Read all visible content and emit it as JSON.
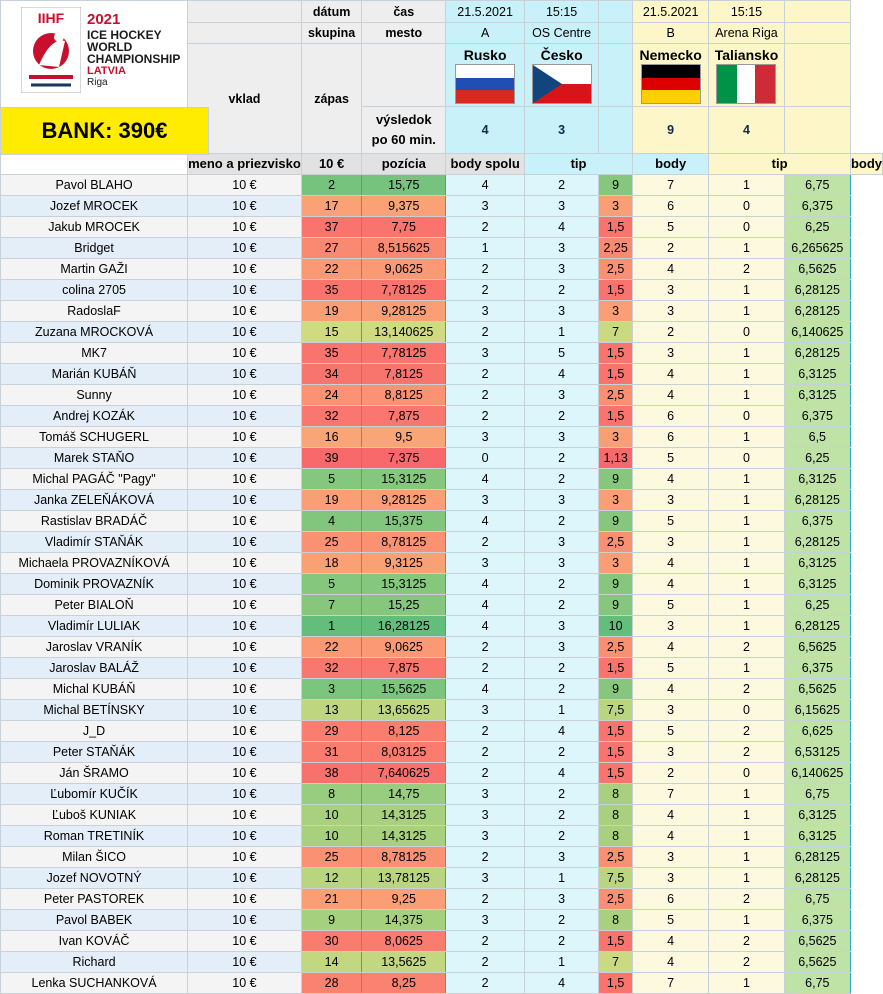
{
  "logo": {
    "brand": "IIHF",
    "year": "2021",
    "line1": "ICE HOCKEY",
    "line2": "WORLD",
    "line3": "CHAMPIONSHIP",
    "country": "LATVIA",
    "city": "Riga"
  },
  "bank": "BANK: 390€",
  "header": {
    "datum": "dátum",
    "cas": "čas",
    "skupina": "skupina",
    "mesto": "mesto",
    "vklad": "vklad",
    "zapas": "zápas",
    "vysledok1": "výsledok",
    "vysledok2": "po 60 min."
  },
  "match1": {
    "date": "21.5.2021",
    "time": "15:15",
    "group": "A",
    "venue": "OS Centre",
    "home": "Rusko",
    "away": "Česko",
    "home_score": "4",
    "away_score": "3"
  },
  "match2": {
    "date": "21.5.2021",
    "time": "15:15",
    "group": "B",
    "venue": "Arena Riga",
    "home": "Nemecko",
    "away": "Taliansko",
    "home_score": "9",
    "away_score": "4"
  },
  "columns": {
    "name": "meno a priezvisko",
    "stake": "10 €",
    "position": "pozícia",
    "total": "body spolu",
    "tip": "tip",
    "points": "body"
  },
  "colors": {
    "green": "#63be7b",
    "yellow": "#fde783",
    "red": "#f8696b",
    "cyan": "#ddf6fb",
    "bank": "#ffec00"
  },
  "rows": [
    {
      "name": "Pavol BLAHO",
      "stake": "10 €",
      "pos": "2",
      "total": "15,75",
      "t1a": "4",
      "t1b": "2",
      "b1": "9",
      "t2a": "7",
      "t2b": "1",
      "b2": "6,75"
    },
    {
      "name": "Jozef MROCEK",
      "stake": "10 €",
      "pos": "17",
      "total": "9,375",
      "t1a": "3",
      "t1b": "3",
      "b1": "3",
      "t2a": "6",
      "t2b": "0",
      "b2": "6,375"
    },
    {
      "name": "Jakub MROCEK",
      "stake": "10 €",
      "pos": "37",
      "total": "7,75",
      "t1a": "2",
      "t1b": "4",
      "b1": "1,5",
      "t2a": "5",
      "t2b": "0",
      "b2": "6,25"
    },
    {
      "name": "Bridget",
      "stake": "10 €",
      "pos": "27",
      "total": "8,515625",
      "t1a": "1",
      "t1b": "3",
      "b1": "2,25",
      "t2a": "2",
      "t2b": "1",
      "b2": "6,265625"
    },
    {
      "name": "Martin GAŽI",
      "stake": "10 €",
      "pos": "22",
      "total": "9,0625",
      "t1a": "2",
      "t1b": "3",
      "b1": "2,5",
      "t2a": "4",
      "t2b": "2",
      "b2": "6,5625"
    },
    {
      "name": "colina 2705",
      "stake": "10 €",
      "pos": "35",
      "total": "7,78125",
      "t1a": "2",
      "t1b": "2",
      "b1": "1,5",
      "t2a": "3",
      "t2b": "1",
      "b2": "6,28125"
    },
    {
      "name": "RadoslaF",
      "stake": "10 €",
      "pos": "19",
      "total": "9,28125",
      "t1a": "3",
      "t1b": "3",
      "b1": "3",
      "t2a": "3",
      "t2b": "1",
      "b2": "6,28125"
    },
    {
      "name": "Zuzana MROCKOVÁ",
      "stake": "10 €",
      "pos": "15",
      "total": "13,140625",
      "t1a": "2",
      "t1b": "1",
      "b1": "7",
      "t2a": "2",
      "t2b": "0",
      "b2": "6,140625"
    },
    {
      "name": "MK7",
      "stake": "10 €",
      "pos": "35",
      "total": "7,78125",
      "t1a": "3",
      "t1b": "5",
      "b1": "1,5",
      "t2a": "3",
      "t2b": "1",
      "b2": "6,28125"
    },
    {
      "name": "Marián KUBÁŇ",
      "stake": "10 €",
      "pos": "34",
      "total": "7,8125",
      "t1a": "2",
      "t1b": "4",
      "b1": "1,5",
      "t2a": "4",
      "t2b": "1",
      "b2": "6,3125"
    },
    {
      "name": "Sunny",
      "stake": "10 €",
      "pos": "24",
      "total": "8,8125",
      "t1a": "2",
      "t1b": "3",
      "b1": "2,5",
      "t2a": "4",
      "t2b": "1",
      "b2": "6,3125"
    },
    {
      "name": "Andrej KOZÁK",
      "stake": "10 €",
      "pos": "32",
      "total": "7,875",
      "t1a": "2",
      "t1b": "2",
      "b1": "1,5",
      "t2a": "6",
      "t2b": "0",
      "b2": "6,375"
    },
    {
      "name": "Tomáš SCHUGERL",
      "stake": "10 €",
      "pos": "16",
      "total": "9,5",
      "t1a": "3",
      "t1b": "3",
      "b1": "3",
      "t2a": "6",
      "t2b": "1",
      "b2": "6,5"
    },
    {
      "name": "Marek STAŇO",
      "stake": "10 €",
      "pos": "39",
      "total": "7,375",
      "t1a": "0",
      "t1b": "2",
      "b1": "1,13",
      "t2a": "5",
      "t2b": "0",
      "b2": "6,25"
    },
    {
      "name": "Michal PAGÁČ \"Pagy\"",
      "stake": "10 €",
      "pos": "5",
      "total": "15,3125",
      "t1a": "4",
      "t1b": "2",
      "b1": "9",
      "t2a": "4",
      "t2b": "1",
      "b2": "6,3125"
    },
    {
      "name": "Janka ZELEŇÁKOVÁ",
      "stake": "10 €",
      "pos": "19",
      "total": "9,28125",
      "t1a": "3",
      "t1b": "3",
      "b1": "3",
      "t2a": "3",
      "t2b": "1",
      "b2": "6,28125"
    },
    {
      "name": "Rastislav BRADÁČ",
      "stake": "10 €",
      "pos": "4",
      "total": "15,375",
      "t1a": "4",
      "t1b": "2",
      "b1": "9",
      "t2a": "5",
      "t2b": "1",
      "b2": "6,375"
    },
    {
      "name": "Vladimír STAŇÁK",
      "stake": "10 €",
      "pos": "25",
      "total": "8,78125",
      "t1a": "2",
      "t1b": "3",
      "b1": "2,5",
      "t2a": "3",
      "t2b": "1",
      "b2": "6,28125"
    },
    {
      "name": "Michaela PROVAZNÍKOVÁ",
      "stake": "10 €",
      "pos": "18",
      "total": "9,3125",
      "t1a": "3",
      "t1b": "3",
      "b1": "3",
      "t2a": "4",
      "t2b": "1",
      "b2": "6,3125"
    },
    {
      "name": "Dominik PROVAZNÍK",
      "stake": "10 €",
      "pos": "5",
      "total": "15,3125",
      "t1a": "4",
      "t1b": "2",
      "b1": "9",
      "t2a": "4",
      "t2b": "1",
      "b2": "6,3125"
    },
    {
      "name": "Peter BIALOŇ",
      "stake": "10 €",
      "pos": "7",
      "total": "15,25",
      "t1a": "4",
      "t1b": "2",
      "b1": "9",
      "t2a": "5",
      "t2b": "1",
      "b2": "6,25"
    },
    {
      "name": "Vladimír LULIAK",
      "stake": "10 €",
      "pos": "1",
      "total": "16,28125",
      "t1a": "4",
      "t1b": "3",
      "b1": "10",
      "t2a": "3",
      "t2b": "1",
      "b2": "6,28125"
    },
    {
      "name": "Jaroslav VRANÍK",
      "stake": "10 €",
      "pos": "22",
      "total": "9,0625",
      "t1a": "2",
      "t1b": "3",
      "b1": "2,5",
      "t2a": "4",
      "t2b": "2",
      "b2": "6,5625"
    },
    {
      "name": "Jaroslav BALÁŽ",
      "stake": "10 €",
      "pos": "32",
      "total": "7,875",
      "t1a": "2",
      "t1b": "2",
      "b1": "1,5",
      "t2a": "5",
      "t2b": "1",
      "b2": "6,375"
    },
    {
      "name": "Michal KUBÁŇ",
      "stake": "10 €",
      "pos": "3",
      "total": "15,5625",
      "t1a": "4",
      "t1b": "2",
      "b1": "9",
      "t2a": "4",
      "t2b": "2",
      "b2": "6,5625"
    },
    {
      "name": "Michal BETÍNSKY",
      "stake": "10 €",
      "pos": "13",
      "total": "13,65625",
      "t1a": "3",
      "t1b": "1",
      "b1": "7,5",
      "t2a": "3",
      "t2b": "0",
      "b2": "6,15625"
    },
    {
      "name": "J_D",
      "stake": "10 €",
      "pos": "29",
      "total": "8,125",
      "t1a": "2",
      "t1b": "4",
      "b1": "1,5",
      "t2a": "5",
      "t2b": "2",
      "b2": "6,625"
    },
    {
      "name": "Peter STAŇÁK",
      "stake": "10 €",
      "pos": "31",
      "total": "8,03125",
      "t1a": "2",
      "t1b": "2",
      "b1": "1,5",
      "t2a": "3",
      "t2b": "2",
      "b2": "6,53125"
    },
    {
      "name": "Ján ŠRAMO",
      "stake": "10 €",
      "pos": "38",
      "total": "7,640625",
      "t1a": "2",
      "t1b": "4",
      "b1": "1,5",
      "t2a": "2",
      "t2b": "0",
      "b2": "6,140625"
    },
    {
      "name": "Ľubomír KUČÍK",
      "stake": "10 €",
      "pos": "8",
      "total": "14,75",
      "t1a": "3",
      "t1b": "2",
      "b1": "8",
      "t2a": "7",
      "t2b": "1",
      "b2": "6,75"
    },
    {
      "name": "Ľuboš KUNIAK",
      "stake": "10 €",
      "pos": "10",
      "total": "14,3125",
      "t1a": "3",
      "t1b": "2",
      "b1": "8",
      "t2a": "4",
      "t2b": "1",
      "b2": "6,3125"
    },
    {
      "name": "Roman TRETINÍK",
      "stake": "10 €",
      "pos": "10",
      "total": "14,3125",
      "t1a": "3",
      "t1b": "2",
      "b1": "8",
      "t2a": "4",
      "t2b": "1",
      "b2": "6,3125"
    },
    {
      "name": "Milan ŠICO",
      "stake": "10 €",
      "pos": "25",
      "total": "8,78125",
      "t1a": "2",
      "t1b": "3",
      "b1": "2,5",
      "t2a": "3",
      "t2b": "1",
      "b2": "6,28125"
    },
    {
      "name": "Jozef NOVOTNÝ",
      "stake": "10 €",
      "pos": "12",
      "total": "13,78125",
      "t1a": "3",
      "t1b": "1",
      "b1": "7,5",
      "t2a": "3",
      "t2b": "1",
      "b2": "6,28125"
    },
    {
      "name": "Peter PASTOREK",
      "stake": "10 €",
      "pos": "21",
      "total": "9,25",
      "t1a": "2",
      "t1b": "3",
      "b1": "2,5",
      "t2a": "6",
      "t2b": "2",
      "b2": "6,75"
    },
    {
      "name": "Pavol BABEK",
      "stake": "10 €",
      "pos": "9",
      "total": "14,375",
      "t1a": "3",
      "t1b": "2",
      "b1": "8",
      "t2a": "5",
      "t2b": "1",
      "b2": "6,375"
    },
    {
      "name": "Ivan KOVÁČ",
      "stake": "10 €",
      "pos": "30",
      "total": "8,0625",
      "t1a": "2",
      "t1b": "2",
      "b1": "1,5",
      "t2a": "4",
      "t2b": "2",
      "b2": "6,5625"
    },
    {
      "name": "Richard",
      "stake": "10 €",
      "pos": "14",
      "total": "13,5625",
      "t1a": "2",
      "t1b": "1",
      "b1": "7",
      "t2a": "4",
      "t2b": "2",
      "b2": "6,5625"
    },
    {
      "name": "Lenka SUCHANKOVÁ",
      "stake": "10 €",
      "pos": "28",
      "total": "8,25",
      "t1a": "2",
      "t1b": "4",
      "b1": "1,5",
      "t2a": "7",
      "t2b": "1",
      "b2": "6,75"
    }
  ]
}
